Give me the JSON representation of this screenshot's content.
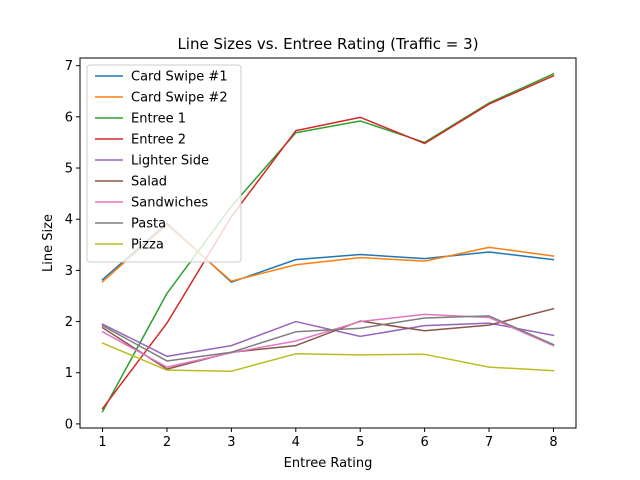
{
  "chart_data": {
    "type": "line",
    "title": "Line Sizes vs. Entree Rating (Traffic = 3)",
    "xlabel": "Entree Rating",
    "ylabel": "Line Size",
    "x": [
      1,
      2,
      3,
      4,
      5,
      6,
      7,
      8
    ],
    "xticks": [
      "1",
      "2",
      "3",
      "4",
      "5",
      "6",
      "7",
      "8"
    ],
    "yticks": [
      "0",
      "1",
      "2",
      "3",
      "4",
      "5",
      "6",
      "7"
    ],
    "xlim": [
      0.65,
      8.35
    ],
    "ylim": [
      -0.08,
      7.15
    ],
    "grid": false,
    "legend": "upper-left",
    "series": [
      {
        "name": "Card Swipe #1",
        "color": "#1f77b4",
        "values": [
          2.82,
          3.92,
          2.77,
          3.21,
          3.31,
          3.23,
          3.36,
          3.21
        ]
      },
      {
        "name": "Card Swipe #2",
        "color": "#ff7f0e",
        "values": [
          2.78,
          3.89,
          2.79,
          3.11,
          3.25,
          3.18,
          3.45,
          3.28
        ]
      },
      {
        "name": "Entree 1",
        "color": "#2ca02c",
        "values": [
          0.24,
          2.55,
          4.25,
          5.69,
          5.92,
          5.5,
          6.27,
          6.84
        ]
      },
      {
        "name": "Entree 2",
        "color": "#d62728",
        "values": [
          0.3,
          1.97,
          4.05,
          5.73,
          5.99,
          5.48,
          6.25,
          6.8
        ]
      },
      {
        "name": "Lighter Side",
        "color": "#9467bd",
        "values": [
          1.95,
          1.32,
          1.53,
          2.0,
          1.71,
          1.92,
          1.97,
          1.73
        ]
      },
      {
        "name": "Salad",
        "color": "#8c564b",
        "values": [
          1.88,
          1.07,
          1.4,
          1.53,
          2.01,
          1.82,
          1.93,
          2.25
        ]
      },
      {
        "name": "Sandwiches",
        "color": "#e377c2",
        "values": [
          1.8,
          1.11,
          1.39,
          1.62,
          2.0,
          2.14,
          2.08,
          1.53
        ]
      },
      {
        "name": "Pasta",
        "color": "#7f7f7f",
        "values": [
          1.92,
          1.23,
          1.4,
          1.8,
          1.87,
          2.07,
          2.11,
          1.55
        ]
      },
      {
        "name": "Pizza",
        "color": "#bcbd22",
        "values": [
          1.58,
          1.05,
          1.03,
          1.37,
          1.35,
          1.36,
          1.11,
          1.04
        ]
      }
    ]
  }
}
